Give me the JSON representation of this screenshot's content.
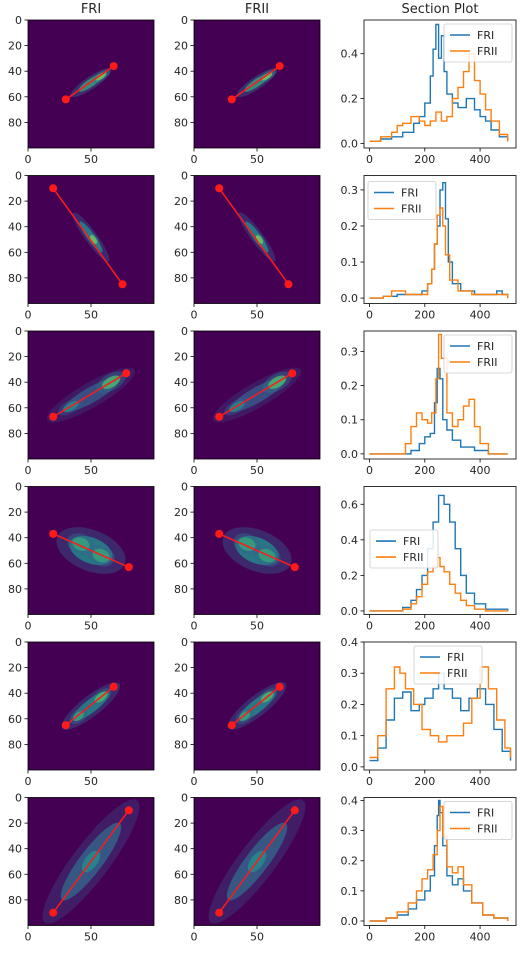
{
  "column_titles": [
    "FRI",
    "FRII",
    "Section Plot"
  ],
  "colors": {
    "fri": "#1f77b4",
    "frii": "#ff7f0e",
    "image_bg": "#440154",
    "section_line": "#ff1a1a"
  },
  "image_axes": {
    "xticks": [
      0,
      50
    ],
    "yticks": [
      0,
      20,
      40,
      60,
      80
    ],
    "xlim": [
      0,
      100
    ],
    "ylim": [
      100,
      0
    ]
  },
  "chart_data": [
    {
      "type": "heatmap",
      "row": 1,
      "section_line": {
        "x": [
          30,
          68
        ],
        "y": [
          62,
          36
        ]
      },
      "blobs": [
        {
          "x": 50,
          "y": 49,
          "sx": 12,
          "sy": 3,
          "angle": -34,
          "v": 0.6
        },
        {
          "x": 58,
          "y": 44,
          "sx": 5,
          "sy": 2,
          "angle": -34,
          "v": 0.8
        }
      ]
    },
    {
      "type": "line",
      "row": 1,
      "title": "Section Plot",
      "xlim": [
        -20,
        530
      ],
      "ylim": [
        -0.02,
        0.55
      ],
      "xticks": [
        0,
        200,
        400
      ],
      "yticks": [
        0.0,
        0.2,
        0.4
      ],
      "legend": "top-right",
      "series": [
        {
          "name": "FRI",
          "x": [
            0,
            40,
            80,
            120,
            160,
            180,
            200,
            220,
            230,
            240,
            250,
            260,
            270,
            280,
            300,
            320,
            350,
            380,
            400,
            420,
            440,
            470,
            500
          ],
          "values": [
            0.01,
            0.02,
            0.03,
            0.05,
            0.09,
            0.12,
            0.18,
            0.3,
            0.42,
            0.53,
            0.38,
            0.48,
            0.32,
            0.22,
            0.18,
            0.16,
            0.2,
            0.15,
            0.12,
            0.1,
            0.06,
            0.03,
            0.01
          ]
        },
        {
          "name": "FRII",
          "x": [
            0,
            40,
            80,
            100,
            120,
            150,
            180,
            200,
            220,
            240,
            260,
            280,
            300,
            320,
            340,
            360,
            380,
            400,
            420,
            440,
            470,
            500
          ],
          "values": [
            0.01,
            0.03,
            0.05,
            0.08,
            0.09,
            0.12,
            0.1,
            0.08,
            0.1,
            0.14,
            0.1,
            0.12,
            0.2,
            0.25,
            0.32,
            0.4,
            0.28,
            0.22,
            0.15,
            0.1,
            0.04,
            0.01
          ]
        }
      ]
    },
    {
      "type": "heatmap",
      "row": 2,
      "section_line": {
        "x": [
          20,
          75
        ],
        "y": [
          10,
          85
        ]
      },
      "blobs": [
        {
          "x": 50,
          "y": 48,
          "sx": 15,
          "sy": 3,
          "angle": 54,
          "v": 0.5
        },
        {
          "x": 52,
          "y": 50,
          "sx": 4,
          "sy": 2,
          "angle": 54,
          "v": 0.8
        }
      ]
    },
    {
      "type": "line",
      "row": 2,
      "title": "",
      "xlim": [
        -20,
        530
      ],
      "ylim": [
        -0.015,
        0.34
      ],
      "xticks": [
        0,
        200,
        400
      ],
      "yticks": [
        0.0,
        0.1,
        0.2,
        0.3
      ],
      "legend": "top-left",
      "series": [
        {
          "name": "FRI",
          "x": [
            0,
            50,
            100,
            150,
            190,
            210,
            225,
            235,
            245,
            255,
            265,
            275,
            285,
            300,
            330,
            380,
            430,
            460,
            480,
            500
          ],
          "values": [
            0.0,
            0.005,
            0.01,
            0.01,
            0.02,
            0.04,
            0.08,
            0.15,
            0.2,
            0.3,
            0.32,
            0.22,
            0.1,
            0.04,
            0.02,
            0.01,
            0.01,
            0.02,
            0.01,
            0.0
          ]
        },
        {
          "name": "FRII",
          "x": [
            0,
            50,
            80,
            130,
            180,
            210,
            225,
            235,
            245,
            255,
            265,
            275,
            290,
            320,
            370,
            430,
            470,
            500
          ],
          "values": [
            0.0,
            0.005,
            0.02,
            0.01,
            0.01,
            0.04,
            0.08,
            0.15,
            0.23,
            0.25,
            0.2,
            0.12,
            0.05,
            0.02,
            0.01,
            0.01,
            0.01,
            0.0
          ]
        }
      ]
    },
    {
      "type": "heatmap",
      "row": 3,
      "section_line": {
        "x": [
          20,
          78
        ],
        "y": [
          67,
          33
        ]
      },
      "blobs": [
        {
          "x": 50,
          "y": 50,
          "sx": 25,
          "sy": 6,
          "angle": -30,
          "v": 0.3
        },
        {
          "x": 66,
          "y": 40,
          "sx": 8,
          "sy": 4,
          "angle": -30,
          "v": 0.7
        },
        {
          "x": 34,
          "y": 59,
          "sx": 7,
          "sy": 3,
          "angle": -30,
          "v": 0.5
        }
      ]
    },
    {
      "type": "line",
      "row": 3,
      "title": "",
      "xlim": [
        -20,
        530
      ],
      "ylim": [
        -0.015,
        0.36
      ],
      "xticks": [
        0,
        200,
        400
      ],
      "yticks": [
        0.0,
        0.1,
        0.2,
        0.3
      ],
      "legend": "top-right",
      "series": [
        {
          "name": "FRI",
          "x": [
            0,
            100,
            150,
            180,
            200,
            220,
            235,
            245,
            255,
            265,
            280,
            300,
            330,
            380,
            430,
            500
          ],
          "values": [
            0.0,
            0.0,
            0.01,
            0.03,
            0.05,
            0.06,
            0.15,
            0.25,
            0.22,
            0.1,
            0.07,
            0.04,
            0.02,
            0.01,
            0.0,
            0.0
          ]
        },
        {
          "name": "FRII",
          "x": [
            0,
            100,
            130,
            150,
            170,
            190,
            210,
            225,
            240,
            250,
            260,
            280,
            300,
            320,
            340,
            360,
            380,
            400,
            430,
            500
          ],
          "values": [
            0.0,
            0.0,
            0.03,
            0.08,
            0.12,
            0.1,
            0.09,
            0.12,
            0.22,
            0.35,
            0.28,
            0.12,
            0.08,
            0.1,
            0.14,
            0.16,
            0.08,
            0.03,
            0.0,
            0.0
          ]
        }
      ]
    },
    {
      "type": "heatmap",
      "row": 4,
      "section_line": {
        "x": [
          20,
          80
        ],
        "y": [
          37,
          63
        ]
      },
      "blobs": [
        {
          "x": 50,
          "y": 50,
          "sx": 18,
          "sy": 10,
          "angle": 22,
          "v": 0.5
        },
        {
          "x": 42,
          "y": 45,
          "sx": 7,
          "sy": 5,
          "angle": 22,
          "v": 0.6
        },
        {
          "x": 58,
          "y": 54,
          "sx": 7,
          "sy": 5,
          "angle": 22,
          "v": 0.6
        }
      ]
    },
    {
      "type": "line",
      "row": 4,
      "title": "",
      "xlim": [
        -20,
        530
      ],
      "ylim": [
        -0.02,
        0.7
      ],
      "xticks": [
        0,
        200,
        400
      ],
      "yticks": [
        0.0,
        0.2,
        0.4,
        0.6
      ],
      "legend": "center-left",
      "series": [
        {
          "name": "FRI",
          "x": [
            0,
            80,
            120,
            150,
            170,
            190,
            210,
            230,
            250,
            270,
            290,
            310,
            330,
            350,
            380,
            420,
            500
          ],
          "values": [
            0.0,
            0.0,
            0.02,
            0.06,
            0.12,
            0.2,
            0.35,
            0.5,
            0.65,
            0.6,
            0.5,
            0.35,
            0.2,
            0.1,
            0.04,
            0.01,
            0.0
          ]
        },
        {
          "name": "FRII",
          "x": [
            0,
            80,
            120,
            150,
            170,
            190,
            210,
            230,
            245,
            255,
            270,
            290,
            310,
            330,
            350,
            380,
            420,
            500
          ],
          "values": [
            0.0,
            0.0,
            0.01,
            0.04,
            0.08,
            0.15,
            0.22,
            0.25,
            0.3,
            0.25,
            0.22,
            0.15,
            0.1,
            0.06,
            0.03,
            0.01,
            0.0,
            0.0
          ]
        }
      ]
    },
    {
      "type": "heatmap",
      "row": 5,
      "section_line": {
        "x": [
          30,
          68
        ],
        "y": [
          65,
          35
        ]
      },
      "blobs": [
        {
          "x": 50,
          "y": 50,
          "sx": 18,
          "sy": 5,
          "angle": -38,
          "v": 0.5
        },
        {
          "x": 58,
          "y": 43,
          "sx": 6,
          "sy": 3,
          "angle": -38,
          "v": 0.7
        },
        {
          "x": 40,
          "y": 58,
          "sx": 5,
          "sy": 3,
          "angle": -38,
          "v": 0.6
        }
      ]
    },
    {
      "type": "line",
      "row": 5,
      "title": "",
      "xlim": [
        -20,
        530
      ],
      "ylim": [
        -0.01,
        0.4
      ],
      "xticks": [
        0,
        200,
        400
      ],
      "yticks": [
        0.0,
        0.1,
        0.2,
        0.3,
        0.4
      ],
      "legend": "top-center",
      "series": [
        {
          "name": "FRI",
          "x": [
            0,
            30,
            60,
            90,
            120,
            150,
            180,
            200,
            230,
            250,
            270,
            300,
            330,
            360,
            390,
            420,
            450,
            480,
            510
          ],
          "values": [
            0.02,
            0.06,
            0.15,
            0.22,
            0.24,
            0.18,
            0.2,
            0.22,
            0.25,
            0.3,
            0.25,
            0.22,
            0.18,
            0.22,
            0.25,
            0.2,
            0.12,
            0.05,
            0.02
          ]
        },
        {
          "name": "FRII",
          "x": [
            0,
            30,
            60,
            90,
            110,
            130,
            160,
            190,
            220,
            250,
            280,
            310,
            340,
            370,
            400,
            430,
            460,
            490,
            510
          ],
          "values": [
            0.03,
            0.1,
            0.25,
            0.32,
            0.3,
            0.25,
            0.2,
            0.12,
            0.1,
            0.08,
            0.1,
            0.1,
            0.14,
            0.22,
            0.32,
            0.25,
            0.15,
            0.06,
            0.03
          ]
        }
      ]
    },
    {
      "type": "heatmap",
      "row": 6,
      "section_line": {
        "x": [
          20,
          80
        ],
        "y": [
          90,
          10
        ]
      },
      "blobs": [
        {
          "x": 50,
          "y": 50,
          "sx": 38,
          "sy": 9,
          "angle": -53,
          "v": 0.35
        },
        {
          "x": 50,
          "y": 50,
          "sx": 10,
          "sy": 5,
          "angle": -53,
          "v": 0.5
        }
      ]
    },
    {
      "type": "line",
      "row": 6,
      "title": "",
      "xlim": [
        -20,
        530
      ],
      "ylim": [
        -0.015,
        0.41
      ],
      "xticks": [
        0,
        200,
        400
      ],
      "yticks": [
        0.0,
        0.1,
        0.2,
        0.3,
        0.4
      ],
      "legend": "top-right",
      "series": [
        {
          "name": "FRI",
          "x": [
            0,
            60,
            100,
            140,
            170,
            200,
            220,
            235,
            245,
            250,
            255,
            265,
            280,
            300,
            320,
            340,
            370,
            410,
            450,
            500
          ],
          "values": [
            0.0,
            0.01,
            0.02,
            0.04,
            0.07,
            0.1,
            0.15,
            0.25,
            0.35,
            0.4,
            0.36,
            0.25,
            0.15,
            0.12,
            0.14,
            0.1,
            0.06,
            0.02,
            0.01,
            0.0
          ]
        },
        {
          "name": "FRII",
          "x": [
            0,
            60,
            100,
            140,
            170,
            190,
            210,
            230,
            245,
            255,
            265,
            280,
            300,
            320,
            340,
            370,
            410,
            450,
            500
          ],
          "values": [
            0.0,
            0.01,
            0.03,
            0.06,
            0.1,
            0.14,
            0.17,
            0.22,
            0.3,
            0.38,
            0.28,
            0.18,
            0.16,
            0.18,
            0.12,
            0.06,
            0.02,
            0.01,
            0.0
          ]
        }
      ]
    }
  ]
}
